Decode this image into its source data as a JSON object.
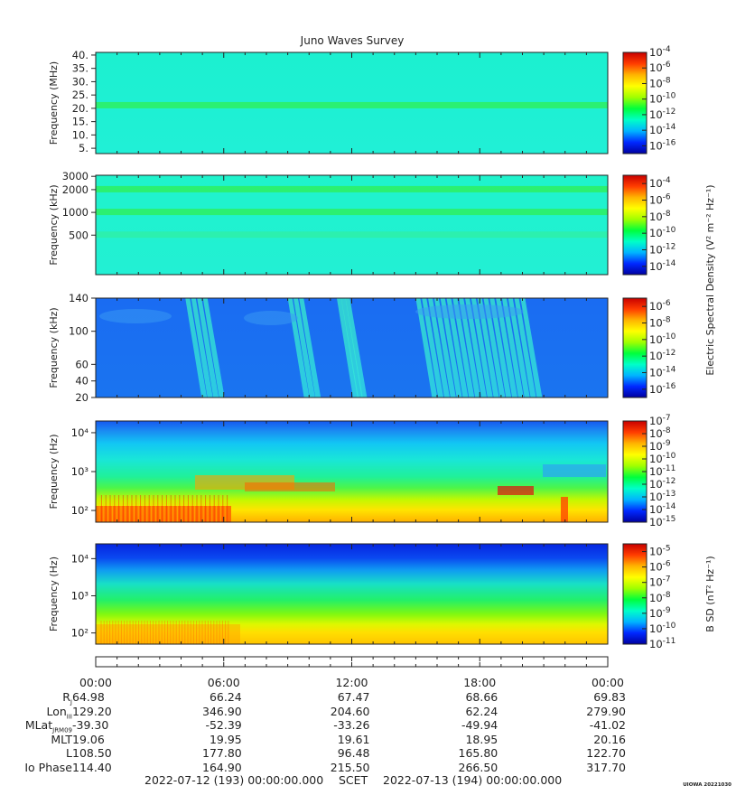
{
  "figure": {
    "title": "Juno Waves Survey",
    "credit": "UIOWA 20221030"
  },
  "colors": {
    "colormap": [
      "#0000a0",
      "#0028ff",
      "#00b4ff",
      "#00ffc8",
      "#00ff3c",
      "#a0ff00",
      "#ffff00",
      "#ffb400",
      "#ff3c00",
      "#c80000"
    ]
  },
  "chart_data": [
    {
      "type": "heatmap",
      "panel": "HFR high",
      "ylabel": "Frequency (MHz)",
      "yticks": [
        "40.",
        "35.",
        "30.",
        "25.",
        "20.",
        "15.",
        "10.",
        "5."
      ],
      "ytick_values": [
        40,
        35,
        30,
        25,
        20,
        15,
        10,
        5
      ],
      "ylim": [
        3,
        41
      ],
      "colorbar_ticks": [
        "-4",
        "-6",
        "-8",
        "-10",
        "-12",
        "-14",
        "-16"
      ],
      "colorbar_range": [
        -17,
        -4
      ],
      "colorbar_label": "",
      "bands": [
        {
          "y": 21,
          "level": 0.52
        }
      ]
    },
    {
      "type": "heatmap",
      "panel": "HFR low",
      "ylabel": "Frequency (kHz)",
      "yticks": [
        "3000",
        "2000",
        "1000",
        "500"
      ],
      "ytick_values": [
        3000,
        2000,
        1000,
        500
      ],
      "ylim": [
        150,
        3100
      ],
      "colorbar_ticks": [
        "-4",
        "-6",
        "-8",
        "-10",
        "-12",
        "-14"
      ],
      "colorbar_range": [
        -15,
        -3
      ],
      "colorbar_label": "Electric Spectral Density (V² m⁻² Hz⁻¹)",
      "bands": [
        {
          "y": 2000,
          "level": 0.52
        },
        {
          "y": 1000,
          "level": 0.52
        },
        {
          "y": 500,
          "level": 0.42
        }
      ]
    },
    {
      "type": "heatmap",
      "panel": "LFR high",
      "ylabel": "Frequency (kHz)",
      "yticks": [
        "140",
        "100",
        "60",
        "40",
        "20"
      ],
      "ytick_values": [
        140,
        100,
        60,
        40,
        20
      ],
      "ylim": [
        20,
        140
      ],
      "colorbar_ticks": [
        "-6",
        "-8",
        "-10",
        "-12",
        "-14",
        "-16"
      ],
      "colorbar_range": [
        -17,
        -5
      ],
      "colorbar_label": "",
      "bursts": [
        {
          "hour": 4.2,
          "hour_end": 5.3,
          "level": 0.36
        },
        {
          "hour": 9.0,
          "hour_end": 9.8,
          "level": 0.34
        },
        {
          "hour": 11.3,
          "hour_end": 11.9,
          "level": 0.33
        },
        {
          "hour": 15.0,
          "hour_end": 20.2,
          "level": 0.38
        }
      ]
    },
    {
      "type": "heatmap",
      "panel": "LFR low E",
      "ylabel": "Frequency (Hz)",
      "yticks": [
        "10⁴",
        "10³",
        "10²"
      ],
      "ytick_values": [
        10000,
        1000,
        100
      ],
      "ylim": [
        50,
        20000
      ],
      "colorbar_ticks": [
        "-7",
        "-8",
        "-9",
        "-10",
        "-11",
        "-12",
        "-13",
        "-14",
        "-15"
      ],
      "colorbar_range": [
        -15,
        -7
      ],
      "colorbar_label": ""
    },
    {
      "type": "heatmap",
      "panel": "LFR low B",
      "ylabel": "Frequency (Hz)",
      "yticks": [
        "10⁴",
        "10³",
        "10²"
      ],
      "ytick_values": [
        10000,
        1000,
        100
      ],
      "ylim": [
        50,
        25000
      ],
      "colorbar_ticks": [
        "-5",
        "-6",
        "-7",
        "-8",
        "-9",
        "-10",
        "-11"
      ],
      "colorbar_range": [
        -11,
        -4.5
      ],
      "colorbar_label": "B SD (nT² Hz⁻¹)"
    }
  ],
  "xaxis": {
    "tick_labels": [
      "00:00",
      "06:00",
      "12:00",
      "18:00",
      "00:00"
    ],
    "tick_hours": [
      0,
      6,
      12,
      18,
      24
    ],
    "range_hours": [
      0,
      24
    ]
  },
  "ephemeris": [
    {
      "label": "R",
      "sub": "J",
      "values": [
        "64.98",
        "66.24",
        "67.47",
        "68.66",
        "69.83"
      ]
    },
    {
      "label": "Lon",
      "sub": "III",
      "values": [
        "129.20",
        "346.90",
        "204.60",
        "62.24",
        "279.90"
      ]
    },
    {
      "label": "MLat",
      "sub": "JRM09",
      "values": [
        "-39.30",
        "-52.39",
        "-33.26",
        "-49.94",
        "-41.02"
      ]
    },
    {
      "label": "MLT",
      "sub": "",
      "values": [
        "19.06",
        "19.95",
        "19.61",
        "18.95",
        "20.16"
      ]
    },
    {
      "label": "L",
      "sub": "",
      "values": [
        "108.50",
        "177.80",
        "96.48",
        "165.80",
        "122.70"
      ]
    },
    {
      "label": "Io Phase",
      "sub": "",
      "values": [
        "114.40",
        "164.90",
        "215.50",
        "266.50",
        "317.70"
      ]
    }
  ],
  "footer": {
    "start": "2022-07-12 (193) 00:00:00.000",
    "label": "SCET",
    "end": "2022-07-13 (194) 00:00:00.000"
  }
}
